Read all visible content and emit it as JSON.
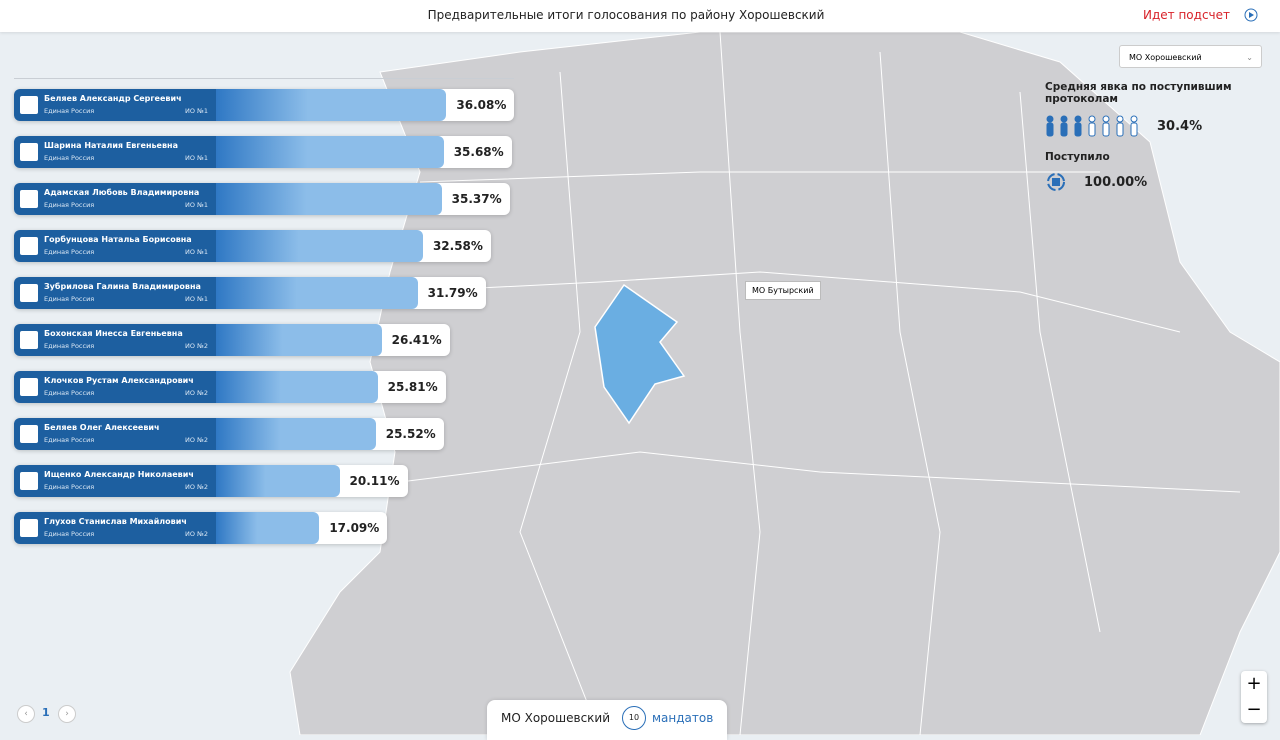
{
  "header": {
    "title": "Предварительные итоги голосования по району Хорошевский",
    "status": "Идет подсчет"
  },
  "district_select": "МО Хорошевский",
  "turnout": {
    "label": "Средняя явка по поступившим протоколам",
    "value": "30.4%"
  },
  "received": {
    "label": "Поступило",
    "value": "100.00%"
  },
  "map_label": "МО Бутырский",
  "candidates": [
    {
      "name": "Беляев Александр Сергеевич",
      "party": "Единая Россия",
      "district": "ИО №1",
      "value": 36.08,
      "value_label": "36.08%"
    },
    {
      "name": "Шарина Наталия Евгеньевна",
      "party": "Единая Россия",
      "district": "ИО №1",
      "value": 35.68,
      "value_label": "35.68%"
    },
    {
      "name": "Адамская Любовь Владимировна",
      "party": "Единая Россия",
      "district": "ИО №1",
      "value": 35.37,
      "value_label": "35.37%"
    },
    {
      "name": "Горбунцова Натальа Борисовна",
      "party": "Единая Россия",
      "district": "ИО №1",
      "value": 32.58,
      "value_label": "32.58%"
    },
    {
      "name": "Зубрилова Галина Владимировна",
      "party": "Единая Россия",
      "district": "ИО №1",
      "value": 31.79,
      "value_label": "31.79%"
    },
    {
      "name": "Бохонская Инесса Евгеньевна",
      "party": "Единая Россия",
      "district": "ИО №2",
      "value": 26.41,
      "value_label": "26.41%"
    },
    {
      "name": "Клочков Рустам Александрович",
      "party": "Единая Россия",
      "district": "ИО №2",
      "value": 25.81,
      "value_label": "25.81%"
    },
    {
      "name": "Беляев Олег Алексеевич",
      "party": "Единая Россия",
      "district": "ИО №2",
      "value": 25.52,
      "value_label": "25.52%"
    },
    {
      "name": "Ищенко Александр Николаевич",
      "party": "Единая Россия",
      "district": "ИО №2",
      "value": 20.11,
      "value_label": "20.11%"
    },
    {
      "name": "Глухов Станислав Михайлович",
      "party": "Единая Россия",
      "district": "ИО №2",
      "value": 17.09,
      "value_label": "17.09%"
    }
  ],
  "pagination": {
    "page": "1"
  },
  "footer": {
    "district": "МО Хорошевский",
    "mandates": "10",
    "mandates_label": "мандатов"
  },
  "zoom": {
    "in": "+",
    "out": "−"
  }
}
